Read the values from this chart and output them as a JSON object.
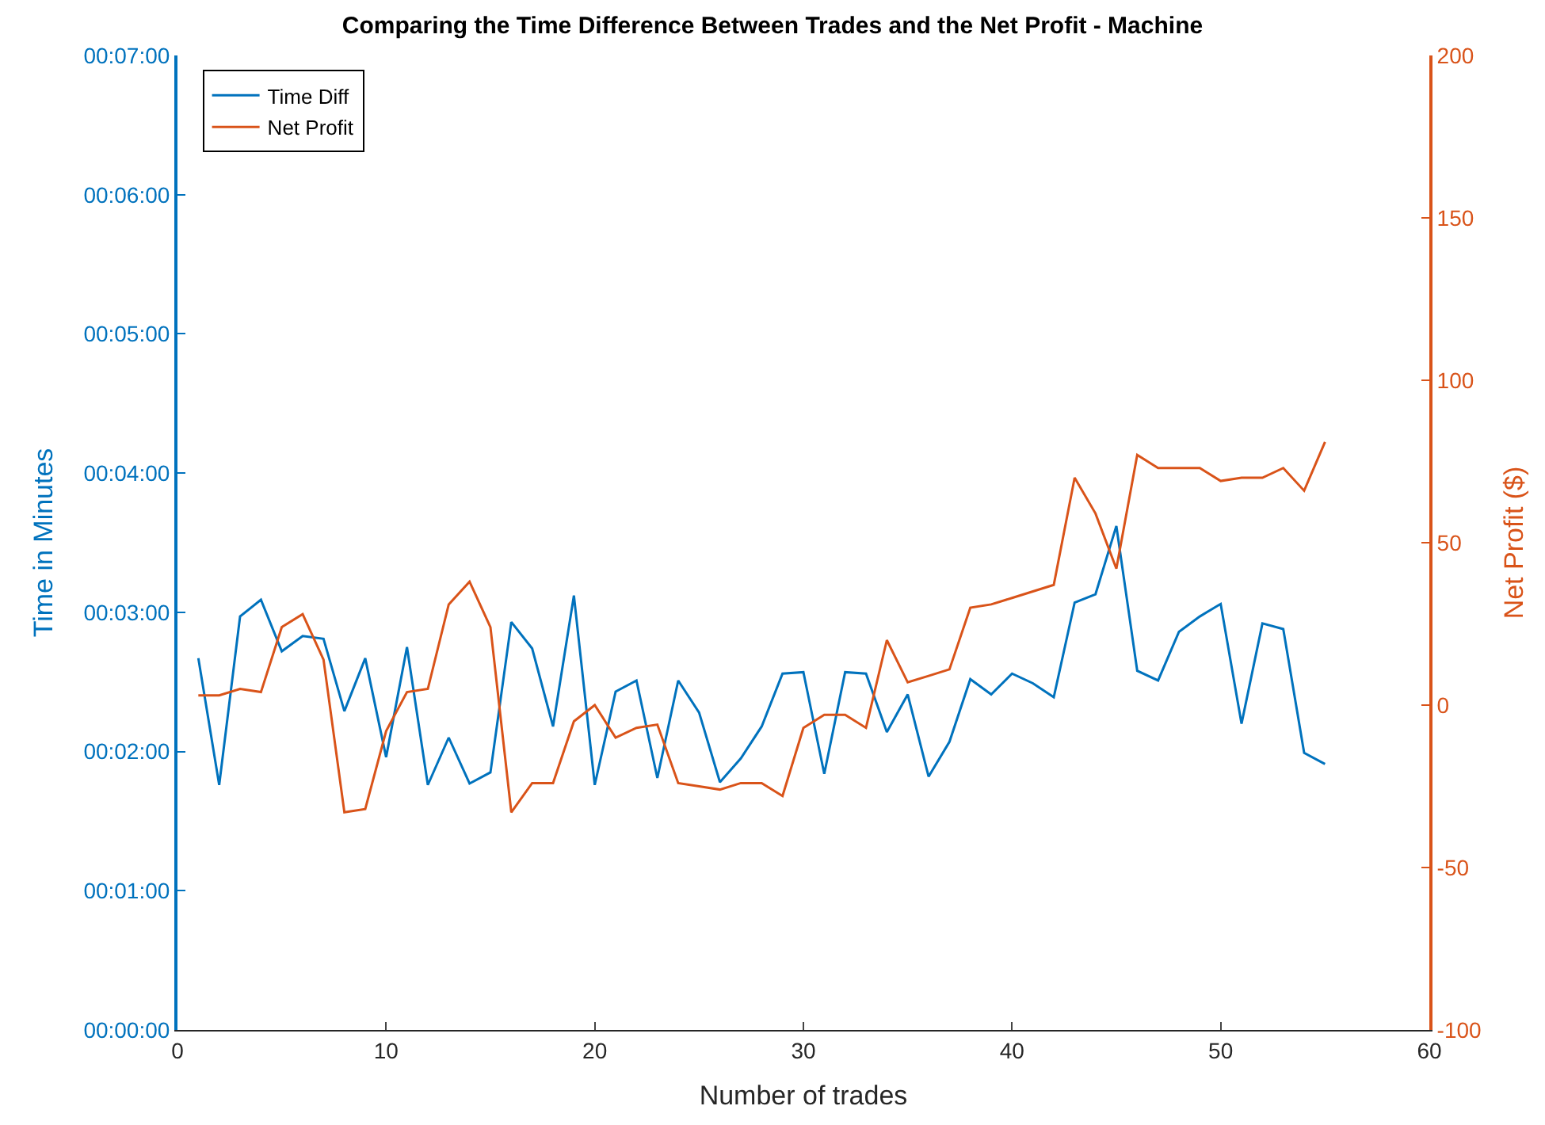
{
  "chart_data": {
    "type": "line",
    "title": "Comparing the Time Difference Between Trades and the Net Profit - Machine",
    "xlabel": "Number of trades",
    "ylabel": "Time in Minutes",
    "y2label": "Net Profit ($)",
    "x": [
      1,
      2,
      3,
      4,
      5,
      6,
      7,
      8,
      9,
      10,
      11,
      12,
      13,
      14,
      15,
      16,
      17,
      18,
      19,
      20,
      21,
      22,
      23,
      24,
      25,
      26,
      27,
      28,
      29,
      30,
      31,
      32,
      33,
      34,
      35,
      36,
      37,
      38,
      39,
      40,
      41,
      42,
      43,
      44,
      45,
      46,
      47,
      48,
      49,
      50,
      51,
      52,
      53,
      54,
      55
    ],
    "series": [
      {
        "name": "Time Diff",
        "color": "#0072bd",
        "values": [
          2.67,
          1.76,
          2.97,
          3.09,
          2.72,
          2.83,
          2.81,
          2.29,
          2.67,
          1.96,
          2.75,
          1.76,
          2.1,
          1.77,
          1.85,
          2.93,
          2.74,
          2.18,
          3.12,
          1.76,
          2.43,
          2.51,
          1.81,
          2.51,
          2.28,
          1.78,
          1.95,
          2.18,
          2.56,
          2.57,
          1.84,
          2.57,
          2.56,
          2.14,
          2.41,
          1.82,
          2.07,
          2.52,
          2.41,
          2.56,
          2.49,
          2.39,
          3.07,
          3.13,
          3.62,
          2.58,
          2.51,
          2.86,
          2.97,
          3.06,
          2.2,
          2.92,
          2.88,
          1.99,
          1.91
        ]
      },
      {
        "name": "Net Profit",
        "color": "#d95319",
        "axis": "y2",
        "values": [
          3,
          3,
          5,
          4,
          24,
          28,
          14,
          -33,
          -32,
          -8,
          4,
          5,
          31,
          38,
          24,
          -33,
          -24,
          -24,
          -5,
          0,
          -10,
          -7,
          -6,
          -24,
          -25,
          -26,
          -24,
          -24,
          -28,
          -7,
          -3,
          -3,
          -7,
          20,
          7,
          9,
          11,
          30,
          31,
          33,
          35,
          37,
          70,
          59,
          42,
          77,
          73,
          73,
          73,
          69,
          70,
          70,
          73,
          66,
          81
        ]
      }
    ],
    "xlim": [
      0,
      60
    ],
    "xticks": [
      0,
      10,
      20,
      30,
      40,
      50,
      60
    ],
    "ylim": [
      0,
      7
    ],
    "yticks": [
      {
        "value": 0,
        "label": "00:00:00"
      },
      {
        "value": 1,
        "label": "00:01:00"
      },
      {
        "value": 2,
        "label": "00:02:00"
      },
      {
        "value": 3,
        "label": "00:03:00"
      },
      {
        "value": 4,
        "label": "00:04:00"
      },
      {
        "value": 5,
        "label": "00:05:00"
      },
      {
        "value": 6,
        "label": "00:06:00"
      },
      {
        "value": 7,
        "label": "00:07:00"
      }
    ],
    "y2lim": [
      -100,
      200
    ],
    "y2ticks": [
      -100,
      -50,
      0,
      50,
      100,
      150,
      200
    ],
    "legend": "top left",
    "marker": "none",
    "line_style": "solid"
  }
}
